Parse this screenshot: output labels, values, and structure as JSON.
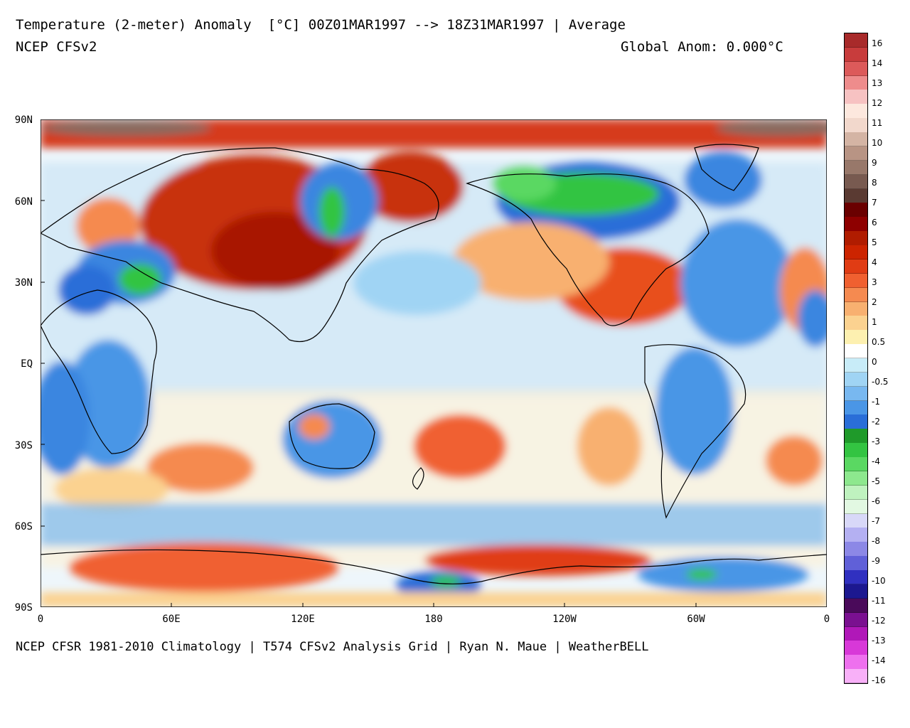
{
  "header": {
    "title": "Temperature (2-meter) Anomaly  [°C] 00Z01MAR1997 --> 18Z31MAR1997 | Average",
    "subtitle": "NCEP CFSv2",
    "global_anom": "Global Anom: 0.000°C"
  },
  "footer": {
    "credit": "NCEP CFSR 1981-2010 Climatology | T574 CFSv2 Analysis Grid | Ryan N. Maue | WeatherBELL"
  },
  "axes": {
    "lat_labels": [
      "90N",
      "60N",
      "30N",
      "EQ",
      "30S",
      "60S",
      "90S"
    ],
    "lon_labels": [
      "0",
      "60E",
      "120E",
      "180",
      "120W",
      "60W",
      "0"
    ]
  },
  "colorbar": {
    "labels": [
      "16",
      "14",
      "13",
      "12",
      "11",
      "10",
      "9",
      "8",
      "7",
      "6",
      "5",
      "4",
      "3",
      "2",
      "1",
      "0.5",
      "0",
      "-0.5",
      "-1",
      "-2",
      "-3",
      "-4",
      "-5",
      "-6",
      "-7",
      "-8",
      "-9",
      "-10",
      "-11",
      "-12",
      "-13",
      "-14",
      "-16"
    ],
    "colors": [
      "#a82a2a",
      "#c83c3c",
      "#dc5a5a",
      "#ee8c8c",
      "#f7c2c2",
      "#fde8de",
      "#f2d8cc",
      "#d4b4a4",
      "#b89484",
      "#98786a",
      "#785a50",
      "#5a3a32",
      "#6a0000",
      "#8e0000",
      "#b01c00",
      "#cc2400",
      "#e03c14",
      "#f06030",
      "#f58a50",
      "#f8b070",
      "#fbd290",
      "#fdf0b0",
      "#ffffff",
      "#c8ecf8",
      "#a0d4f4",
      "#78b8f0",
      "#4a96e6",
      "#2a6ed8",
      "#1f9a2a",
      "#33c442",
      "#5ad862",
      "#8de88e",
      "#bff2bf",
      "#e2f8e2",
      "#d8d8f8",
      "#b4b0f2",
      "#8c88e6",
      "#6060d8",
      "#3030c0",
      "#1c1890",
      "#4a0a5a",
      "#7a1090",
      "#b018b8",
      "#d838d8",
      "#ee70ee",
      "#f8b0f8"
    ]
  }
}
